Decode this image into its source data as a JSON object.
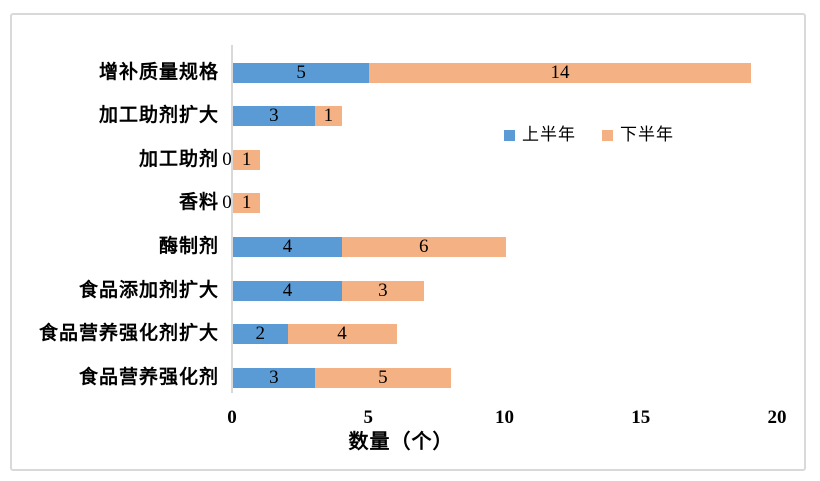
{
  "chart_data": {
    "type": "bar",
    "orientation": "horizontal",
    "stacked": true,
    "title": "",
    "xlabel": "数量（个）",
    "ylabel": "",
    "categories": [
      "增补质量规格",
      "加工助剂扩大",
      "加工助剂",
      "香料",
      "酶制剂",
      "食品添加剂扩大",
      "食品营养强化剂扩大",
      "食品营养强化剂"
    ],
    "series": [
      {
        "name": "上半年",
        "color": "#5B9BD5",
        "values": [
          5,
          3,
          0,
          0,
          4,
          4,
          2,
          3
        ]
      },
      {
        "name": "下半年",
        "color": "#F4B183",
        "values": [
          14,
          1,
          1,
          1,
          6,
          3,
          4,
          5
        ]
      }
    ],
    "x_ticks": [
      0,
      5,
      10,
      15,
      20
    ],
    "xlim": [
      0,
      20
    ],
    "grid": false,
    "legend_position": "inside-top-right",
    "axis_line_color": "#D9D9D9",
    "border_color": "#D9D9D9",
    "text_color": "#000000"
  }
}
